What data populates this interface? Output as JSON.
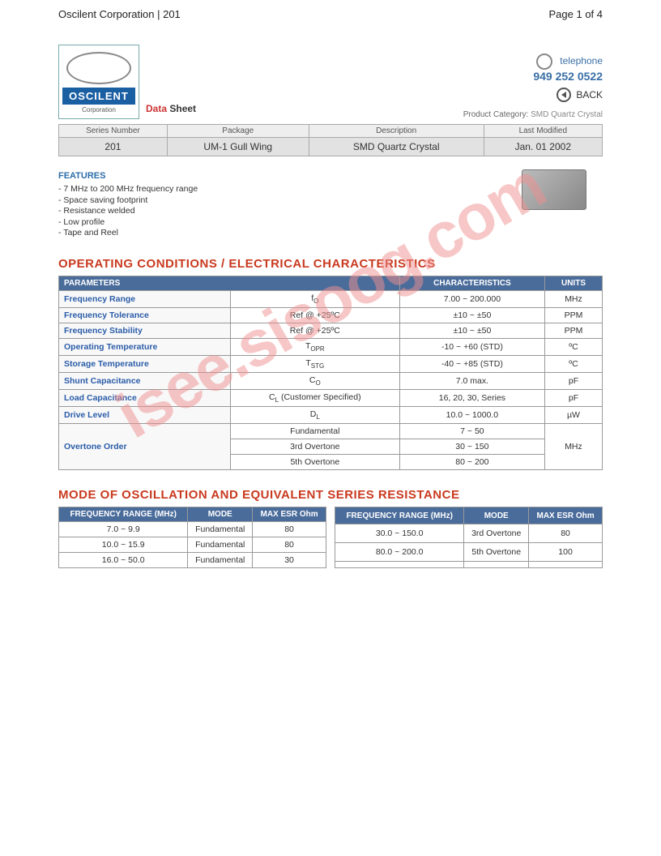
{
  "page_header": {
    "left": "Oscilent Corporation | 201",
    "right": "Page 1 of 4"
  },
  "logo": {
    "name": "OSCILENT",
    "sub": "Corporation"
  },
  "datasheet_label": {
    "data": "Data",
    "sheet": "Sheet"
  },
  "contact": {
    "tel_label": "telephone",
    "tel_num": "949 252 0522",
    "back": "BACK"
  },
  "product_category": {
    "label": "Product Category:",
    "value": "SMD Quartz Crystal"
  },
  "series": {
    "headers": [
      "Series Number",
      "Package",
      "Description",
      "Last Modified"
    ],
    "row": [
      "201",
      "UM-1 Gull Wing",
      "SMD Quartz Crystal",
      "Jan. 01 2002"
    ]
  },
  "features": {
    "heading": "FEATURES",
    "items": [
      "- 7 MHz to 200 MHz frequency range",
      "- Space saving footprint",
      "- Resistance welded",
      "- Low profile",
      "- Tape and Reel"
    ]
  },
  "section1": {
    "heading": "OPERATING CONDITIONS / ELECTRICAL CHARACTERISTICS"
  },
  "spec": {
    "headers": {
      "params": "PARAMETERS",
      "char": "CHARACTERISTICS",
      "units": "UNITS"
    },
    "rows": [
      {
        "p": "Frequency Range",
        "s": "f",
        "sub": "O",
        "c": "7.00 ~ 200.000",
        "u": "MHz"
      },
      {
        "p": "Frequency Tolerance",
        "sym": "Ref @ +25ºC",
        "c": "±10 ~ ±50",
        "u": "PPM"
      },
      {
        "p": "Frequency Stability",
        "sym": "Ref @ +25ºC",
        "c": "±10 ~ ±50",
        "u": "PPM"
      },
      {
        "p": "Operating Temperature",
        "s": "T",
        "sub": "OPR",
        "c": "-10 ~ +60 (STD)",
        "u": "ºC"
      },
      {
        "p": "Storage Temperature",
        "s": "T",
        "sub": "STG",
        "c": "-40 ~ +85 (STD)",
        "u": "ºC"
      },
      {
        "p": "Shunt Capacitance",
        "s": "C",
        "sub": "O",
        "c": "7.0 max.",
        "u": "pF"
      },
      {
        "p": "Load Capacitance",
        "s": "C",
        "sub": "L",
        "suffix": " (Customer Specified)",
        "c": "16, 20, 30, Series",
        "u": "pF"
      },
      {
        "p": "Drive Level",
        "s": "D",
        "sub": "L",
        "c": "10.0 ~ 1000.0",
        "u": "µW"
      }
    ],
    "overtone": {
      "p": "Overtone Order",
      "rows": [
        {
          "mode": "Fundamental",
          "range": "7 ~ 50"
        },
        {
          "mode": "3rd Overtone",
          "range": "30 ~ 150"
        },
        {
          "mode": "5th Overtone",
          "range": "80 ~ 200"
        }
      ],
      "u": "MHz"
    }
  },
  "section2": {
    "heading": "MODE OF OSCILLATION AND EQUIVALENT SERIES RESISTANCE"
  },
  "mode": {
    "headers": [
      "FREQUENCY RANGE (MHz)",
      "MODE",
      "MAX ESR Ohm"
    ],
    "left": [
      {
        "f": "7.0 ~ 9.9",
        "m": "Fundamental",
        "e": "80"
      },
      {
        "f": "10.0 ~ 15.9",
        "m": "Fundamental",
        "e": "80"
      },
      {
        "f": "16.0 ~ 50.0",
        "m": "Fundamental",
        "e": "30"
      }
    ],
    "right": [
      {
        "f": "30.0 ~ 150.0",
        "m": "3rd Overtone",
        "e": "80"
      },
      {
        "f": "80.0 ~ 200.0",
        "m": "5th Overtone",
        "e": "100"
      },
      {
        "f": "",
        "m": "",
        "e": ""
      }
    ]
  },
  "watermark": "isee.sisoog.com",
  "colors": {
    "header_blue": "#4a6c9b",
    "param_blue": "#2a5ca8",
    "section_red": "#c93a1f",
    "logo_blue": "#1b5fa3",
    "watermark": "#f09090"
  }
}
